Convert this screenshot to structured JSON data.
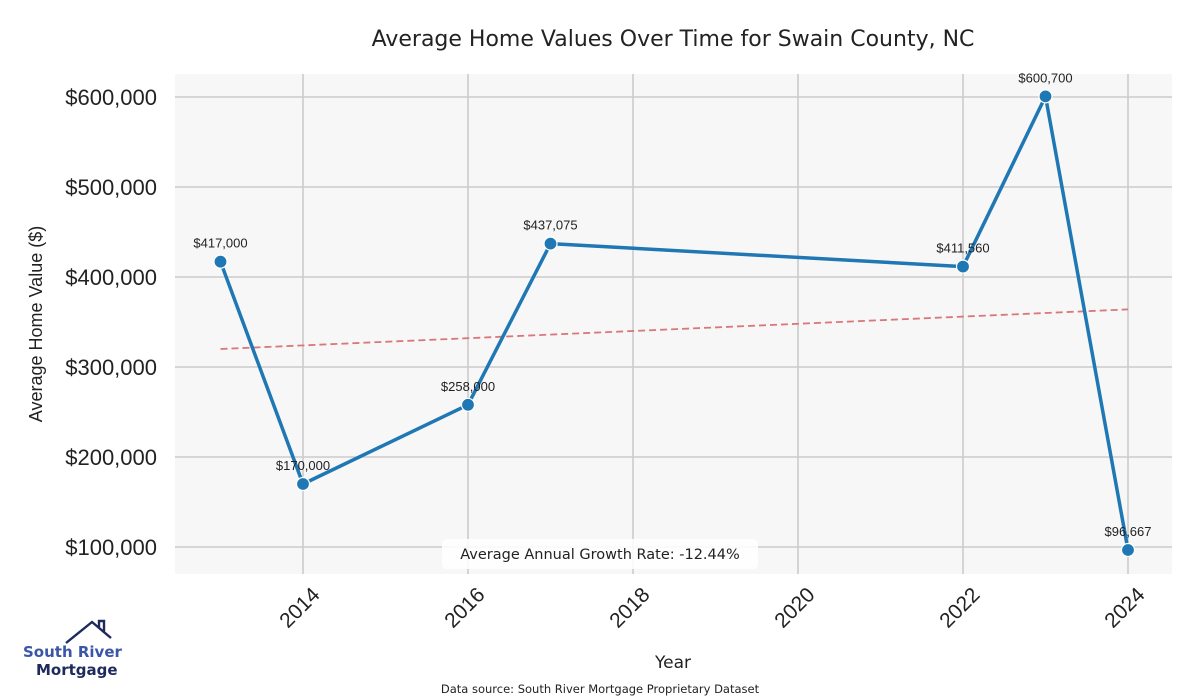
{
  "chart_data": {
    "type": "line",
    "title": "Average Home Values Over Time for Swain County, NC",
    "xlabel": "Year",
    "ylabel": "Average Home Value ($)",
    "x": [
      2013,
      2014,
      2016,
      2017,
      2022,
      2023,
      2024
    ],
    "series": [
      {
        "name": "Average Home Value",
        "color": "#1f77b4",
        "values": [
          417000,
          170000,
          258000,
          437075,
          411560,
          600700,
          96667
        ],
        "labels": [
          "$417,000",
          "$170,000",
          "$258,000",
          "$437,075",
          "$411,560",
          "$600,700",
          "$96,667"
        ]
      }
    ],
    "trend_line": {
      "style": "dashed",
      "color": "#d9777a",
      "x": [
        2013,
        2024
      ],
      "values": [
        320000,
        364000
      ]
    },
    "xticks": [
      2014,
      2016,
      2018,
      2020,
      2022,
      2024
    ],
    "xtick_labels": [
      "2014",
      "2016",
      "2018",
      "2020",
      "2022",
      "2024"
    ],
    "yticks": [
      100000,
      200000,
      300000,
      400000,
      500000,
      600000
    ],
    "ytick_labels": [
      "$100,000",
      "$200,000",
      "$300,000",
      "$400,000",
      "$500,000",
      "$600,000"
    ],
    "xlim": [
      2012.1,
      2024.5
    ],
    "ylim": [
      70000,
      625000
    ],
    "grid": true,
    "annotation": "Average Annual Growth Rate: -12.44%",
    "source": "Data source: South River Mortgage Proprietary Dataset"
  },
  "logo": {
    "line1": "South River",
    "line2": "Mortgage",
    "colors": {
      "primary": "#3b56a6",
      "dark": "#1f2a5c"
    }
  }
}
